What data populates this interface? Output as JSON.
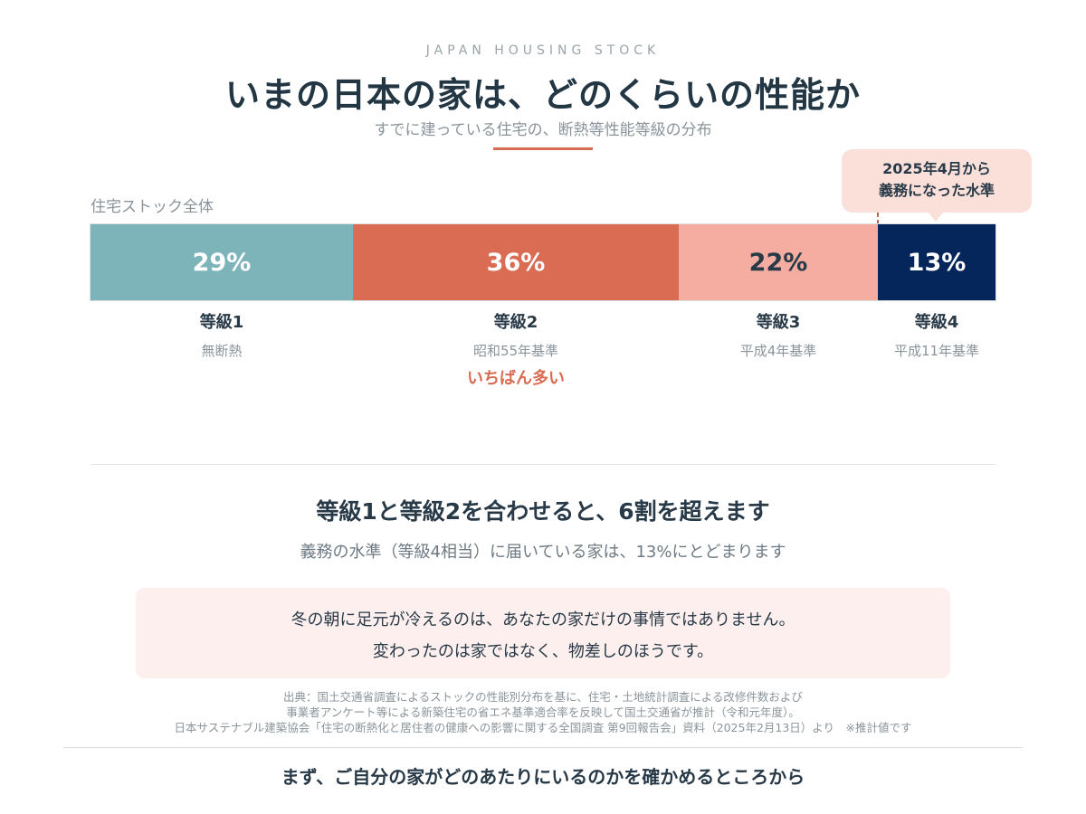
{
  "header": {
    "eyebrow": "JAPAN HOUSING STOCK",
    "title": "いまの日本の家は、どのくらいの性能か",
    "subtitle": "すでに建っている住宅の、断熱等性能等級の分布"
  },
  "callout": {
    "line1": "2025年4月から",
    "line2": "義務になった水準"
  },
  "chart_data": {
    "type": "bar",
    "orientation": "horizontal-stacked-100",
    "title": "いまの日本の家は、どのくらいの性能か",
    "subtitle": "すでに建っている住宅の、断熱等性能等級の分布",
    "category": "住宅ストック全体",
    "unit": "%",
    "total": 100,
    "series": [
      {
        "name": "等級1",
        "label": "29%",
        "value": 29,
        "standard": "無断熱",
        "color": "#7DB4BA",
        "text_color": "#FFFFFF"
      },
      {
        "name": "等級2",
        "label": "36%",
        "value": 36,
        "standard": "昭和55年基準",
        "color": "#D96C52",
        "text_color": "#FFFFFF",
        "note": "いちばん多い"
      },
      {
        "name": "等級3",
        "label": "22%",
        "value": 22,
        "standard": "平成4年基準",
        "color": "#F5ADA1",
        "text_color": "#283A47"
      },
      {
        "name": "等級4",
        "label": "13%",
        "value": 13,
        "standard": "平成11年基準",
        "color": "#04265A",
        "text_color": "#FFFFFF"
      }
    ]
  },
  "summary": {
    "headline": "等級1と等級2を合わせると、6割を超えます",
    "subline": "義務の水準（等級4相当）に届いている家は、13%にとどまります"
  },
  "note": {
    "line1": "冬の朝に足元が冷えるのは、あなたの家だけの事情ではありません。",
    "line2": "変わったのは家ではなく、物差しのほうです。"
  },
  "source": {
    "line1": "出典：国土交通省調査によるストックの性能別分布を基に、住宅・土地統計調査による改修件数および",
    "line2": "事業者アンケート等による新築住宅の省エネ基準適合率を反映して国土交通省が推計（令和元年度）。",
    "line3": "日本サステナブル建築協会「住宅の断熱化と居住者の健康への影響に関する全国調査 第9回報告会」資料（2025年2月13日）より　※推計値です"
  },
  "footer": "まず、ご自分の家がどのあたりにいるのかを確かめるところから"
}
